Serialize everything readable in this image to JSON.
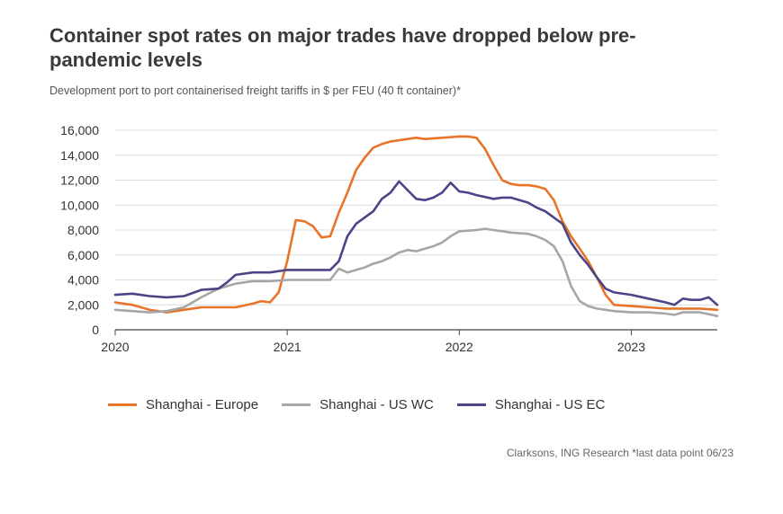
{
  "title": "Container spot rates on major trades have dropped below pre-pandemic levels",
  "subtitle": "Development port to port containerised freight tariffs in $ per FEU (40 ft container)*",
  "source": "Clarksons, ING Research *last data point 06/23",
  "chart_data": {
    "type": "line",
    "ylim": [
      0,
      16000
    ],
    "xlim": [
      2020,
      2023.5
    ],
    "yticks": [
      0,
      2000,
      4000,
      6000,
      8000,
      10000,
      12000,
      14000,
      16000
    ],
    "yticklabels": [
      "0",
      "2,000",
      "4,000",
      "6,000",
      "8,000",
      "10,000",
      "12,000",
      "14,000",
      "16,000"
    ],
    "xticks": [
      2020,
      2021,
      2022,
      2023
    ],
    "xticklabels": [
      "2020",
      "2021",
      "2022",
      "2023"
    ],
    "grid": "horizontal",
    "legend_position": "bottom",
    "series": [
      {
        "name": "Shanghai - Europe",
        "color": "#e8742a",
        "x": [
          2020,
          2020.1,
          2020.2,
          2020.3,
          2020.4,
          2020.5,
          2020.6,
          2020.7,
          2020.8,
          2020.85,
          2020.9,
          2020.95,
          2021.0,
          2021.05,
          2021.1,
          2021.15,
          2021.2,
          2021.25,
          2021.3,
          2021.35,
          2021.4,
          2021.45,
          2021.5,
          2021.55,
          2021.6,
          2021.65,
          2021.7,
          2021.75,
          2021.8,
          2021.9,
          2022.0,
          2022.05,
          2022.1,
          2022.15,
          2022.2,
          2022.25,
          2022.3,
          2022.35,
          2022.4,
          2022.45,
          2022.5,
          2022.55,
          2022.6,
          2022.65,
          2022.7,
          2022.75,
          2022.8,
          2022.85,
          2022.9,
          2023.0,
          2023.1,
          2023.2,
          2023.3,
          2023.4,
          2023.5
        ],
        "y": [
          2200,
          2000,
          1600,
          1400,
          1600,
          1800,
          1800,
          1800,
          2100,
          2300,
          2200,
          3000,
          5500,
          8800,
          8700,
          8300,
          7400,
          7500,
          9400,
          11000,
          12800,
          13800,
          14600,
          14900,
          15100,
          15200,
          15300,
          15400,
          15300,
          15400,
          15500,
          15500,
          15400,
          14500,
          13200,
          12000,
          11700,
          11600,
          11600,
          11500,
          11300,
          10400,
          8700,
          7500,
          6500,
          5500,
          4200,
          2800,
          2000,
          1900,
          1800,
          1700,
          1700,
          1700,
          1600
        ]
      },
      {
        "name": "Shanghai - US WC",
        "color": "#a6a6a6",
        "x": [
          2020,
          2020.1,
          2020.2,
          2020.3,
          2020.4,
          2020.5,
          2020.6,
          2020.7,
          2020.8,
          2020.9,
          2021.0,
          2021.1,
          2021.2,
          2021.25,
          2021.3,
          2021.35,
          2021.4,
          2021.45,
          2021.5,
          2021.55,
          2021.6,
          2021.65,
          2021.7,
          2021.75,
          2021.8,
          2021.85,
          2021.9,
          2021.95,
          2022.0,
          2022.1,
          2022.15,
          2022.2,
          2022.3,
          2022.4,
          2022.45,
          2022.5,
          2022.55,
          2022.6,
          2022.65,
          2022.7,
          2022.75,
          2022.8,
          2022.85,
          2022.9,
          2023.0,
          2023.1,
          2023.2,
          2023.25,
          2023.3,
          2023.4,
          2023.5
        ],
        "y": [
          1600,
          1500,
          1400,
          1500,
          1800,
          2600,
          3300,
          3700,
          3900,
          3900,
          4000,
          4000,
          4000,
          4000,
          4900,
          4600,
          4800,
          5000,
          5300,
          5500,
          5800,
          6200,
          6400,
          6300,
          6500,
          6700,
          7000,
          7500,
          7900,
          8000,
          8100,
          8000,
          7800,
          7700,
          7500,
          7200,
          6700,
          5500,
          3500,
          2300,
          1900,
          1700,
          1600,
          1500,
          1400,
          1400,
          1300,
          1200,
          1400,
          1400,
          1100
        ]
      },
      {
        "name": "Shanghai - US EC",
        "color": "#4b4588",
        "x": [
          2020,
          2020.1,
          2020.2,
          2020.3,
          2020.4,
          2020.5,
          2020.6,
          2020.65,
          2020.7,
          2020.8,
          2020.9,
          2021.0,
          2021.1,
          2021.2,
          2021.25,
          2021.3,
          2021.35,
          2021.4,
          2021.45,
          2021.5,
          2021.55,
          2021.6,
          2021.65,
          2021.7,
          2021.75,
          2021.8,
          2021.85,
          2021.9,
          2021.95,
          2022.0,
          2022.05,
          2022.1,
          2022.2,
          2022.25,
          2022.3,
          2022.4,
          2022.45,
          2022.5,
          2022.55,
          2022.6,
          2022.65,
          2022.7,
          2022.75,
          2022.8,
          2022.85,
          2022.9,
          2023.0,
          2023.1,
          2023.2,
          2023.25,
          2023.3,
          2023.35,
          2023.4,
          2023.45,
          2023.5
        ],
        "y": [
          2800,
          2900,
          2700,
          2600,
          2700,
          3200,
          3300,
          3800,
          4400,
          4600,
          4600,
          4800,
          4800,
          4800,
          4800,
          5500,
          7500,
          8500,
          9000,
          9500,
          10500,
          11000,
          11900,
          11200,
          10500,
          10400,
          10600,
          11000,
          11800,
          11100,
          11000,
          10800,
          10500,
          10600,
          10600,
          10200,
          9800,
          9500,
          9000,
          8500,
          7000,
          6000,
          5200,
          4200,
          3300,
          3000,
          2800,
          2500,
          2200,
          2000,
          2500,
          2400,
          2400,
          2600,
          2000
        ]
      }
    ]
  }
}
